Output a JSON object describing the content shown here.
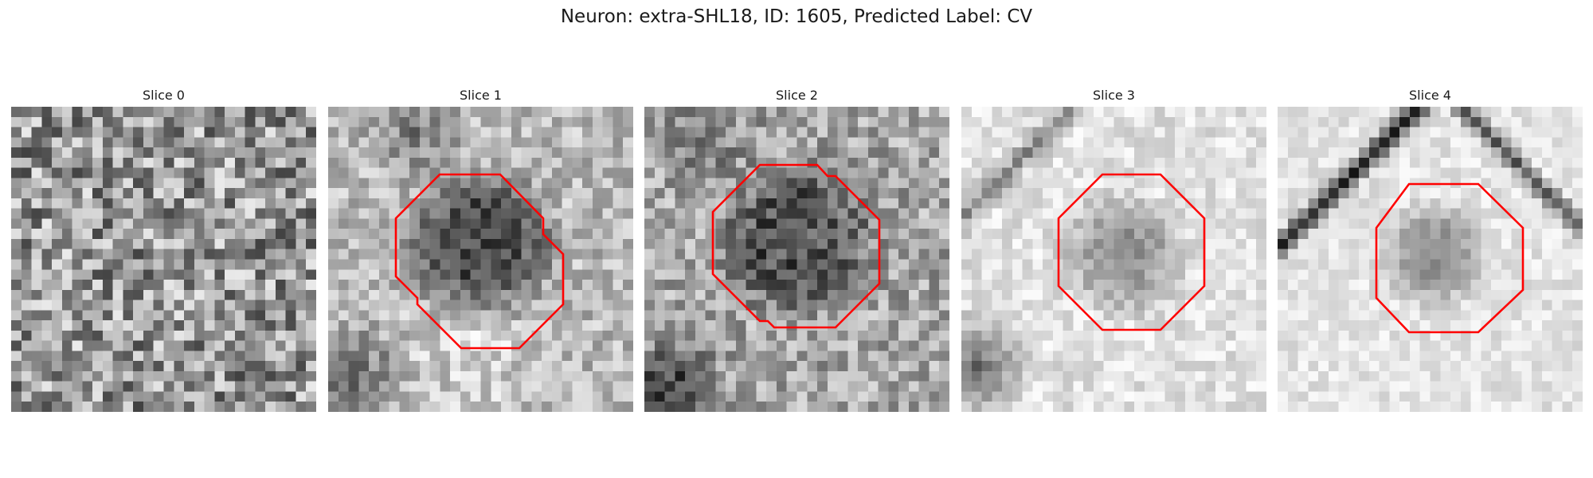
{
  "figure": {
    "title": "Neuron: extra-SHL18, ID: 1605, Predicted Label: CV"
  },
  "slices": [
    {
      "title": "Slice 0",
      "has_contour": false
    },
    {
      "title": "Slice 1",
      "has_contour": true
    },
    {
      "title": "Slice 2",
      "has_contour": true
    },
    {
      "title": "Slice 3",
      "has_contour": true
    },
    {
      "title": "Slice 4",
      "has_contour": true
    }
  ],
  "contour_color": "#ff0000",
  "colormap": "gray"
}
